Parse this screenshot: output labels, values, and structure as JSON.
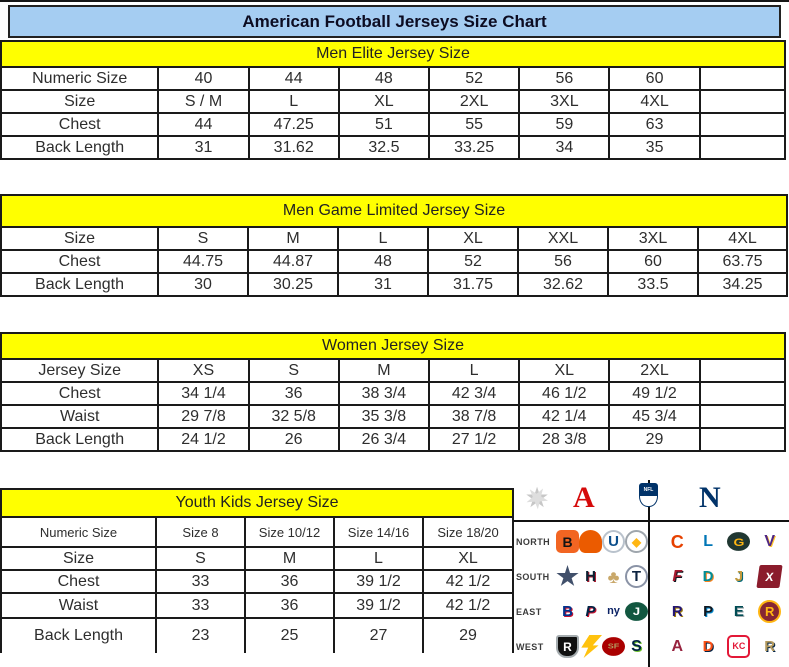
{
  "title": "American Football Jerseys Size Chart",
  "colors": {
    "title_bg": "#A5CDF2",
    "section_bg": "#FFFF00",
    "border": "#1A1A1A",
    "afc_red": "#D50A0A",
    "nfc_blue": "#013369"
  },
  "tables": [
    {
      "id": "men-elite",
      "header": "Men Elite Jersey Size",
      "rows": [
        {
          "label": "Numeric Size",
          "values": [
            "40",
            "44",
            "48",
            "52",
            "56",
            "60",
            ""
          ]
        },
        {
          "label": "Size",
          "values": [
            "S / M",
            "L",
            "XL",
            "2XL",
            "3XL",
            "4XL",
            ""
          ]
        },
        {
          "label": "Chest",
          "values": [
            "44",
            "47.25",
            "51",
            "55",
            "59",
            "63",
            ""
          ]
        },
        {
          "label": "Back Length",
          "values": [
            "31",
            "31.62",
            "32.5",
            "33.25",
            "34",
            "35",
            ""
          ]
        }
      ]
    },
    {
      "id": "men-game-limited",
      "header": "Men Game Limited Jersey Size",
      "rows": [
        {
          "label": "Size",
          "values": [
            "S",
            "M",
            "L",
            "XL",
            "XXL",
            "3XL",
            "4XL"
          ]
        },
        {
          "label": "Chest",
          "values": [
            "44.75",
            "44.87",
            "48",
            "52",
            "56",
            "60",
            "63.75"
          ]
        },
        {
          "label": "Back Length",
          "values": [
            "30",
            "30.25",
            "31",
            "31.75",
            "32.62",
            "33.5",
            "34.25"
          ]
        }
      ]
    },
    {
      "id": "women",
      "header": "Women Jersey Size",
      "rows": [
        {
          "label": "Jersey Size",
          "values": [
            "XS",
            "S",
            "M",
            "L",
            "XL",
            "2XL",
            ""
          ]
        },
        {
          "label": "Chest",
          "values": [
            "34 1/4",
            "36",
            "38 3/4",
            "42 3/4",
            "46 1/2",
            "49 1/2",
            ""
          ]
        },
        {
          "label": "Waist",
          "values": [
            "29 7/8",
            "32 5/8",
            "35 3/8",
            "38 7/8",
            "42 1/4",
            "45 3/4",
            ""
          ]
        },
        {
          "label": "Back Length",
          "values": [
            "24 1/2",
            "26",
            "26 3/4",
            "27 1/2",
            "28 3/8",
            "29",
            ""
          ]
        }
      ]
    },
    {
      "id": "youth-kids",
      "header": "Youth Kids Jersey Size",
      "rows": [
        {
          "label": "Numeric Size",
          "values": [
            "Size 8",
            "Size 10/12",
            "Size 14/16",
            "Size 18/20"
          ]
        },
        {
          "label": "Size",
          "values": [
            "S",
            "M",
            "L",
            "XL"
          ]
        },
        {
          "label": "Chest",
          "values": [
            "33",
            "36",
            "39 1/2",
            "42 1/2"
          ]
        },
        {
          "label": "Waist",
          "values": [
            "33",
            "36",
            "39 1/2",
            "42 1/2"
          ]
        },
        {
          "label": "Back Length",
          "values": [
            "23",
            "25",
            "27",
            "29"
          ]
        }
      ]
    }
  ],
  "logos": {
    "afc_label": "A",
    "nfl_label": "NFL",
    "nfc_label": "N",
    "rows": [
      {
        "label": "NORTH",
        "afc": [
          "bengals",
          "browns",
          "colts",
          "steelers"
        ],
        "nfc": [
          "bears",
          "lions",
          "packers",
          "vikings"
        ]
      },
      {
        "label": "SOUTH",
        "afc": [
          "cowboys-star",
          "texans",
          "saints",
          "titans"
        ],
        "nfc": [
          "falcons",
          "dolphins",
          "jaguars",
          "buccaneers"
        ]
      },
      {
        "label": "EAST",
        "afc": [
          "bills",
          "patriots",
          "giants",
          "jets"
        ],
        "nfc": [
          "ravens",
          "panthers",
          "eagles",
          "redskins"
        ]
      },
      {
        "label": "WEST",
        "afc": [
          "raiders",
          "chargers",
          "49ers",
          "seahawks"
        ],
        "nfc": [
          "cardinals",
          "broncos",
          "chiefs",
          "rams"
        ]
      }
    ],
    "team_styles": {
      "bengals": {
        "bg": "#F26522",
        "fg": "#141414",
        "text": "B",
        "shape": "round",
        "fs": 14
      },
      "browns": {
        "bg": "#EB5B00",
        "fg": "#FFFFFF",
        "text": "",
        "shape": "helmet"
      },
      "colts": {
        "bg": "#FFFFFF",
        "fg": "#0B4E8B",
        "text": "U",
        "shape": "circle",
        "fs": 15,
        "border": "#B9C2CC"
      },
      "steelers": {
        "bg": "#FFFFFF",
        "fg": "#FFB612",
        "text": "◆",
        "shape": "circle",
        "fs": 12,
        "border": "#9FA6AD"
      },
      "bears": {
        "bg": "#FFFFFF",
        "fg": "#E64100",
        "text": "C",
        "shape": "circle",
        "fs": 18
      },
      "lions": {
        "bg": "#FFFFFF",
        "fg": "#0076B6",
        "text": "L",
        "shape": "circle",
        "fs": 16
      },
      "packers": {
        "bg": "#203731",
        "fg": "#FFB612",
        "text": "G",
        "shape": "oval",
        "fs": 14
      },
      "vikings": {
        "bg": "#FFFFFF",
        "fg": "#4F2683",
        "text": "V",
        "shape": "circle",
        "fs": 16,
        "shadow": "#FFC62F"
      },
      "cowboys-star": {
        "bg": "#41506B",
        "fg": "#41506B",
        "text": "",
        "shape": "star"
      },
      "texans": {
        "bg": "#FFFFFF",
        "fg": "#0B2132",
        "text": "H",
        "shape": "circle",
        "fs": 15,
        "shadow": "#A6192E"
      },
      "saints": {
        "bg": "#FFFFFF",
        "fg": "#C9A86A",
        "text": "♣",
        "shape": "circle",
        "fs": 18
      },
      "titans": {
        "bg": "#FFFFFF",
        "fg": "#0C2340",
        "text": "T",
        "shape": "circle",
        "fs": 15,
        "border": "#8A93A6"
      },
      "falcons": {
        "bg": "#FFFFFF",
        "fg": "#A6192E",
        "text": "F",
        "shape": "circle",
        "fs": 16,
        "shadow": "#101820",
        "italic": true
      },
      "dolphins": {
        "bg": "#FFFFFF",
        "fg": "#008E97",
        "text": "D",
        "shape": "circle",
        "fs": 15,
        "shadow": "#F58220"
      },
      "jaguars": {
        "bg": "#FFFFFF",
        "fg": "#C49A3C",
        "text": "J",
        "shape": "circle",
        "fs": 15,
        "shadow": "#006778"
      },
      "buccaneers": {
        "bg": "#8B1C2C",
        "fg": "#FFFFFF",
        "text": "X",
        "shape": "flag",
        "fs": 12
      },
      "bills": {
        "bg": "#FFFFFF",
        "fg": "#00338D",
        "text": "B",
        "shape": "circle",
        "fs": 15,
        "shadow": "#C8102E"
      },
      "patriots": {
        "bg": "#FFFFFF",
        "fg": "#002244",
        "text": "P",
        "shape": "circle",
        "fs": 15,
        "shadow": "#C8102E",
        "italic": true
      },
      "giants": {
        "bg": "#FFFFFF",
        "fg": "#0B2265",
        "text": "ny",
        "shape": "circle",
        "fs": 11
      },
      "jets": {
        "bg": "#125740",
        "fg": "#FFFFFF",
        "text": "J",
        "shape": "oval",
        "fs": 13
      },
      "ravens": {
        "bg": "#FFFFFF",
        "fg": "#241773",
        "text": "R",
        "shape": "circle",
        "fs": 15,
        "shadow": "#9E7C0C"
      },
      "panthers": {
        "bg": "#FFFFFF",
        "fg": "#101820",
        "text": "P",
        "shape": "circle",
        "fs": 15,
        "shadow": "#0085CA"
      },
      "eagles": {
        "bg": "#FFFFFF",
        "fg": "#004C54",
        "text": "E",
        "shape": "circle",
        "fs": 15,
        "shadow": "#A2AAAD"
      },
      "redskins": {
        "bg": "#862633",
        "fg": "#FFB612",
        "text": "R",
        "shape": "circle",
        "fs": 13,
        "border": "#FFB612"
      },
      "raiders": {
        "bg": "#101010",
        "fg": "#FFFFFF",
        "text": "R",
        "shape": "shield",
        "fs": 12,
        "border": "#A5ACAF"
      },
      "chargers": {
        "bg": "#FFC20E",
        "fg": "#FFC20E",
        "text": "",
        "shape": "bolt"
      },
      "49ers": {
        "bg": "#AA0000",
        "fg": "#B3995D",
        "text": "SF",
        "shape": "oval",
        "fs": 9
      },
      "seahawks": {
        "bg": "#FFFFFF",
        "fg": "#002244",
        "text": "S",
        "shape": "circle",
        "fs": 16,
        "shadow": "#69BE28"
      },
      "cardinals": {
        "bg": "#FFFFFF",
        "fg": "#97233F",
        "text": "A",
        "shape": "circle",
        "fs": 16
      },
      "broncos": {
        "bg": "#FFFFFF",
        "fg": "#FB4F14",
        "text": "D",
        "shape": "circle",
        "fs": 15,
        "shadow": "#002244"
      },
      "chiefs": {
        "bg": "#FFFFFF",
        "fg": "#E31837",
        "text": "KC",
        "shape": "round",
        "fs": 9,
        "border": "#E31837"
      },
      "rams": {
        "bg": "#FFFFFF",
        "fg": "#B3995D",
        "text": "R",
        "shape": "circle",
        "fs": 15,
        "shadow": "#002244"
      }
    }
  }
}
